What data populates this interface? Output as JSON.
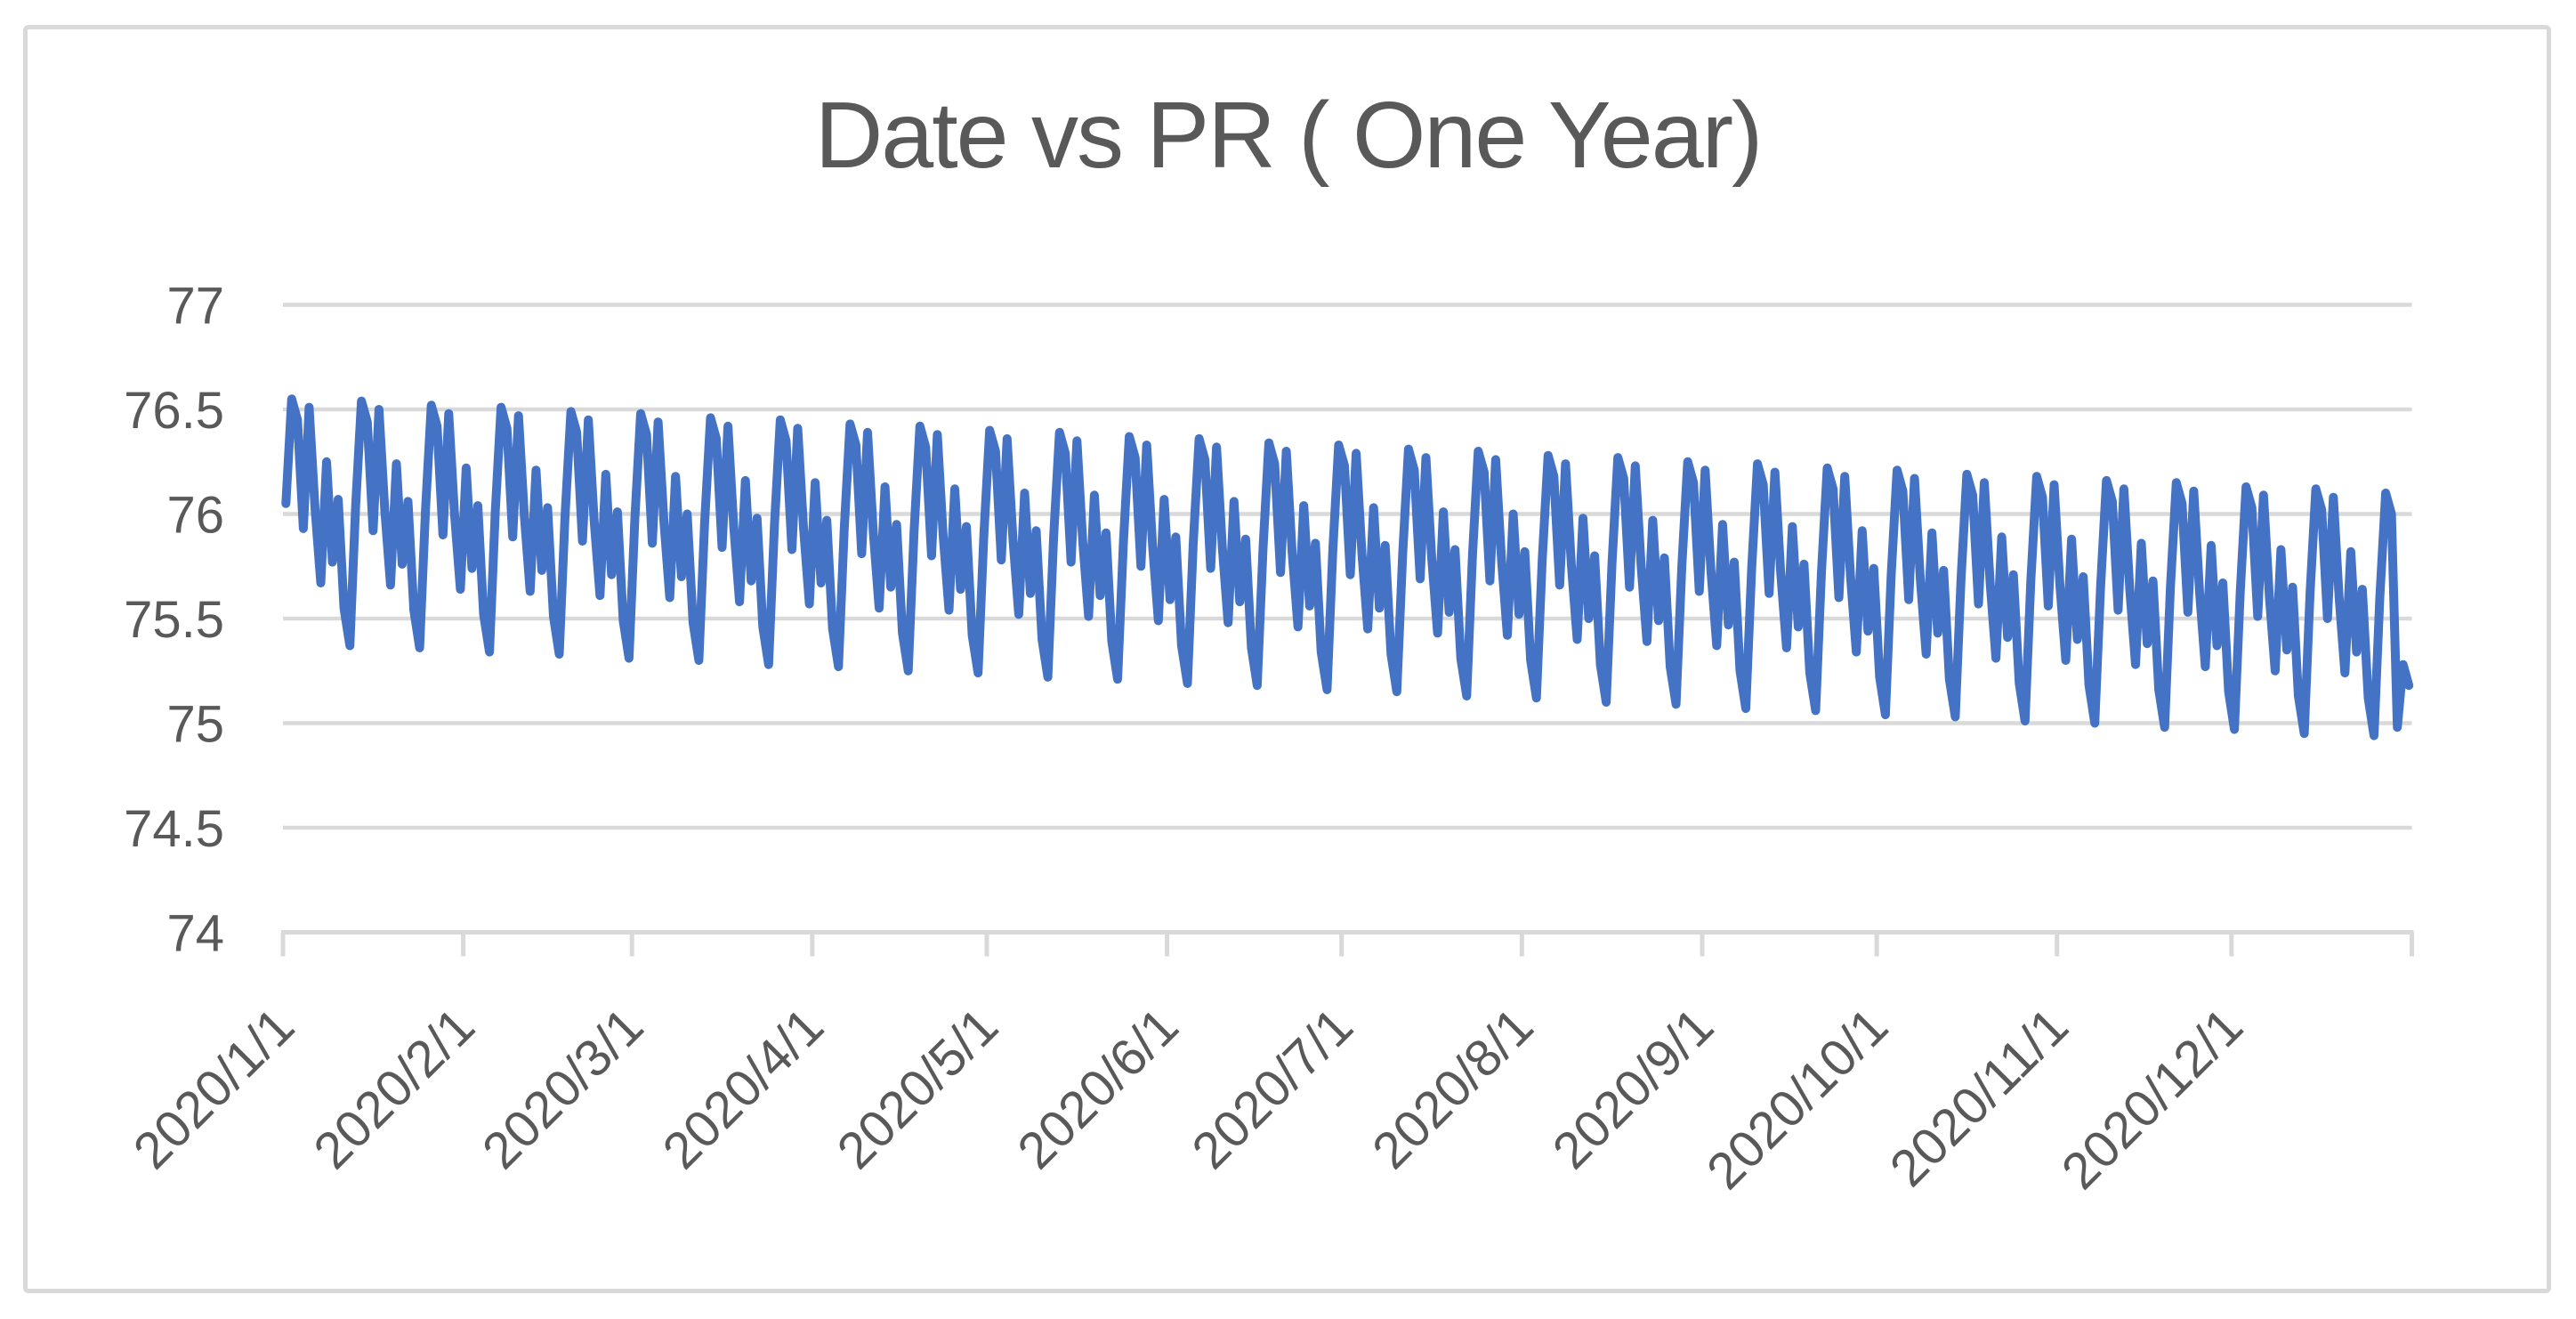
{
  "chart": {
    "title": "Date vs PR ( One Year)",
    "colors": {
      "series_line": "#4472C4",
      "gridline": "#D9D9D9",
      "axis_line": "#D9D9D9",
      "tick_mark": "#D9D9D9",
      "label_text": "#595959",
      "frame_border": "#D9D9D9",
      "background": "#FFFFFF"
    }
  },
  "chart_data": {
    "type": "line",
    "title": "Date vs PR ( One Year)",
    "xlabel": "",
    "ylabel": "",
    "legend": false,
    "grid": true,
    "ylim": [
      74,
      77
    ],
    "y_ticks": [
      {
        "label": "77",
        "value": 77
      },
      {
        "label": "76.5",
        "value": 76.5
      },
      {
        "label": "76",
        "value": 76
      },
      {
        "label": "75.5",
        "value": 75.5
      },
      {
        "label": "75",
        "value": 75
      },
      {
        "label": "74.5",
        "value": 74.5
      },
      {
        "label": "74",
        "value": 74
      }
    ],
    "x_start": "2020/1/1",
    "x_end": "2020/12/31",
    "x_unit": "day",
    "x_tick_labels": [
      "2020/1/1",
      "2020/2/1",
      "2020/3/1",
      "2020/4/1",
      "2020/5/1",
      "2020/6/1",
      "2020/7/1",
      "2020/8/1",
      "2020/9/1",
      "2020/10/1",
      "2020/11/1",
      "2020/12/1"
    ],
    "month_start_days": [
      0,
      31,
      60,
      91,
      121,
      152,
      182,
      213,
      244,
      274,
      305,
      335
    ],
    "series_color": "#4472C4",
    "values": [
      76.05,
      76.55,
      76.45,
      75.93,
      76.51,
      76.03,
      75.67,
      76.25,
      75.77,
      76.07,
      75.55,
      75.37,
      76.04,
      76.54,
      76.44,
      75.92,
      76.5,
      76.02,
      75.66,
      76.24,
      75.76,
      76.06,
      75.54,
      75.36,
      76.02,
      76.52,
      76.42,
      75.9,
      76.48,
      76.0,
      75.64,
      76.22,
      75.74,
      76.04,
      75.52,
      75.34,
      76.01,
      76.51,
      76.41,
      75.89,
      76.47,
      75.99,
      75.63,
      76.21,
      75.73,
      76.03,
      75.51,
      75.33,
      75.99,
      76.49,
      76.39,
      75.87,
      76.45,
      75.97,
      75.61,
      76.19,
      75.71,
      76.01,
      75.49,
      75.31,
      75.98,
      76.48,
      76.38,
      75.86,
      76.44,
      75.96,
      75.6,
      76.18,
      75.7,
      76.0,
      75.48,
      75.3,
      75.96,
      76.46,
      76.36,
      75.84,
      76.42,
      75.94,
      75.58,
      76.16,
      75.68,
      75.98,
      75.46,
      75.28,
      75.95,
      76.45,
      76.35,
      75.83,
      76.41,
      75.93,
      75.57,
      76.15,
      75.67,
      75.97,
      75.45,
      75.27,
      75.93,
      76.43,
      76.33,
      75.81,
      76.39,
      75.91,
      75.55,
      76.13,
      75.65,
      75.95,
      75.43,
      75.25,
      75.92,
      76.42,
      76.32,
      75.8,
      76.38,
      75.9,
      75.54,
      76.12,
      75.64,
      75.94,
      75.42,
      75.24,
      75.9,
      76.4,
      76.3,
      75.78,
      76.36,
      75.88,
      75.52,
      76.1,
      75.62,
      75.92,
      75.4,
      75.22,
      75.89,
      76.39,
      76.29,
      75.77,
      76.35,
      75.87,
      75.51,
      76.09,
      75.61,
      75.91,
      75.39,
      75.21,
      75.87,
      76.37,
      76.27,
      75.75,
      76.33,
      75.85,
      75.49,
      76.07,
      75.59,
      75.89,
      75.37,
      75.19,
      75.86,
      76.36,
      76.26,
      75.74,
      76.32,
      75.84,
      75.48,
      76.06,
      75.58,
      75.88,
      75.36,
      75.18,
      75.84,
      76.34,
      76.24,
      75.72,
      76.3,
      75.82,
      75.46,
      76.04,
      75.56,
      75.86,
      75.34,
      75.16,
      75.83,
      76.33,
      76.23,
      75.71,
      76.29,
      75.81,
      75.45,
      76.03,
      75.55,
      75.85,
      75.33,
      75.15,
      75.81,
      76.31,
      76.21,
      75.69,
      76.27,
      75.79,
      75.43,
      76.01,
      75.53,
      75.83,
      75.31,
      75.13,
      75.8,
      76.3,
      76.2,
      75.68,
      76.26,
      75.78,
      75.42,
      76.0,
      75.52,
      75.82,
      75.3,
      75.12,
      75.78,
      76.28,
      76.18,
      75.66,
      76.24,
      75.76,
      75.4,
      75.98,
      75.5,
      75.8,
      75.28,
      75.1,
      75.77,
      76.27,
      76.17,
      75.65,
      76.23,
      75.75,
      75.39,
      75.97,
      75.49,
      75.79,
      75.27,
      75.09,
      75.75,
      76.25,
      76.15,
      75.63,
      76.21,
      75.73,
      75.37,
      75.95,
      75.47,
      75.77,
      75.25,
      75.07,
      75.74,
      76.24,
      76.14,
      75.62,
      76.2,
      75.72,
      75.36,
      75.94,
      75.46,
      75.76,
      75.24,
      75.06,
      75.72,
      76.22,
      76.12,
      75.6,
      76.18,
      75.7,
      75.34,
      75.92,
      75.44,
      75.74,
      75.22,
      75.04,
      75.71,
      76.21,
      76.11,
      75.59,
      76.17,
      75.69,
      75.33,
      75.91,
      75.43,
      75.73,
      75.21,
      75.03,
      75.69,
      76.19,
      76.09,
      75.57,
      76.15,
      75.67,
      75.31,
      75.89,
      75.41,
      75.71,
      75.19,
      75.01,
      75.68,
      76.18,
      76.08,
      75.56,
      76.14,
      75.66,
      75.3,
      75.88,
      75.4,
      75.7,
      75.18,
      75.0,
      75.66,
      76.16,
      76.06,
      75.54,
      76.12,
      75.64,
      75.28,
      75.86,
      75.38,
      75.68,
      75.16,
      74.98,
      75.65,
      76.15,
      76.05,
      75.53,
      76.11,
      75.63,
      75.27,
      75.85,
      75.37,
      75.67,
      75.15,
      74.97,
      75.63,
      76.13,
      76.03,
      75.51,
      76.09,
      75.61,
      75.25,
      75.83,
      75.35,
      75.65,
      75.13,
      74.95,
      75.62,
      76.12,
      76.02,
      75.5,
      76.08,
      75.6,
      75.24,
      75.82,
      75.34,
      75.64,
      75.12,
      74.94,
      75.6,
      76.1,
      76.0,
      74.98,
      75.28,
      75.18
    ]
  }
}
